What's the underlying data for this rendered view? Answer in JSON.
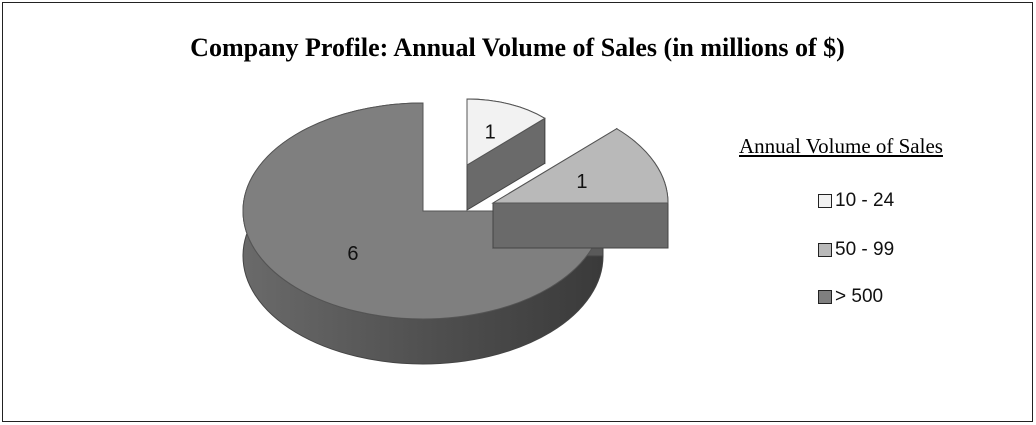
{
  "chart_data": {
    "type": "pie",
    "title": "Company Profile: Annual Volume of Sales (in millions of $)",
    "legend_title": "Annual Volume of Sales",
    "legend_placement": "right",
    "categories": [
      "10 - 24",
      "50 - 99",
      "> 500"
    ],
    "values": [
      1,
      1,
      6
    ],
    "data_labels": [
      "1",
      "1",
      "6"
    ],
    "colors": [
      "#f2f2f2",
      "#b9b9b9",
      "#7f7f7f"
    ],
    "exploded": true,
    "style": "3d"
  }
}
